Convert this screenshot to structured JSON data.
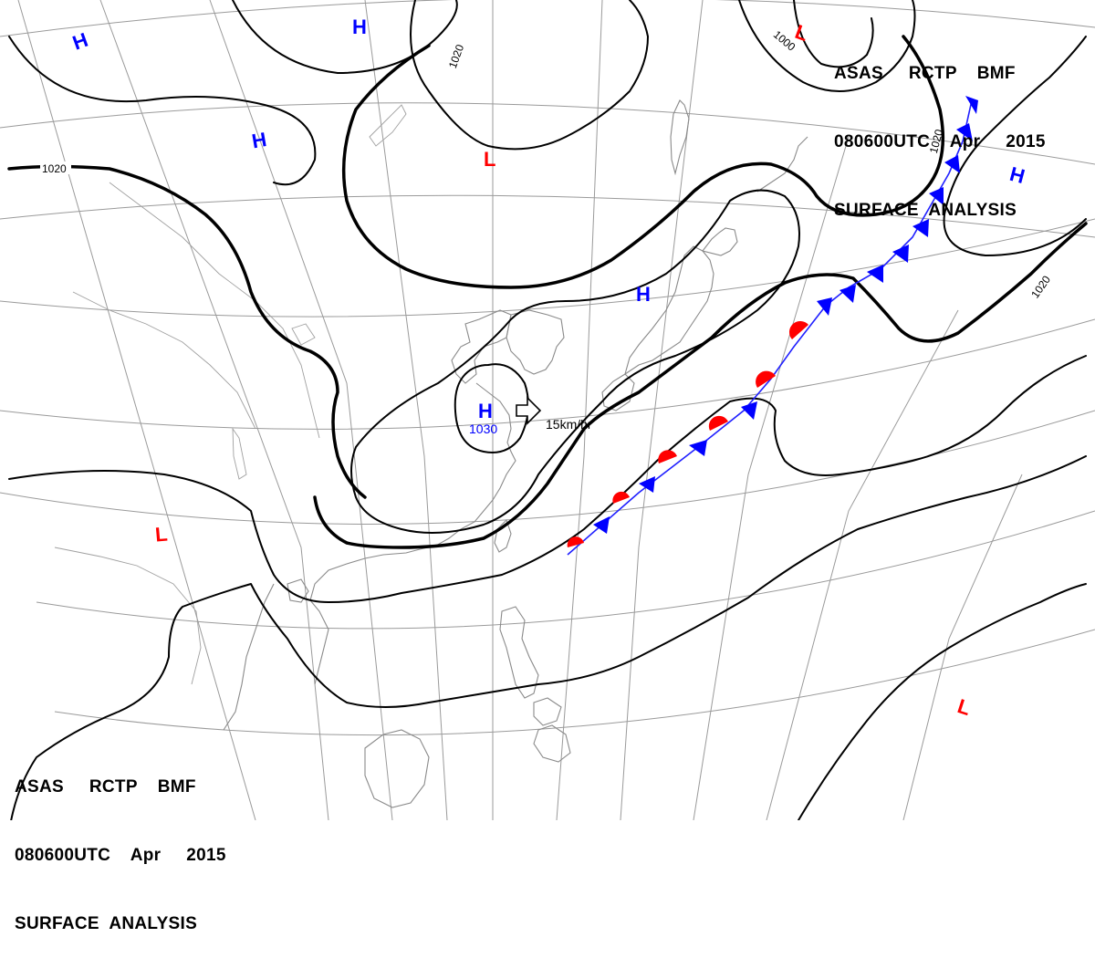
{
  "header_top_right": {
    "line1": "ASAS     RCTP    BMF",
    "line2": "080600UTC    Apr     2015",
    "line3": "SURFACE  ANALYSIS"
  },
  "header_bottom_left": {
    "line1": "ASAS     RCTP    BMF",
    "line2": "080600UTC    Apr     2015",
    "line3": "SURFACE  ANALYSIS"
  },
  "colors": {
    "high": "#0000ff",
    "low": "#ff0000",
    "isobar": "#000000",
    "grid": "#999999",
    "coast": "#8a8a8a"
  },
  "pressure_centers": {
    "h1": "H",
    "h2": "H",
    "h3": "H",
    "h4": "H",
    "h5": "H",
    "h6": "H",
    "l1": "L",
    "l2": "L",
    "l3": "L",
    "l4": "L",
    "main_high_value": "1030"
  },
  "isobar_labels": {
    "a": "1020",
    "b": "1020",
    "c": "1000",
    "d": "1020",
    "e": "1020"
  },
  "movement": {
    "icon": "arrow-outline-icon",
    "speed": "15km/hr"
  }
}
